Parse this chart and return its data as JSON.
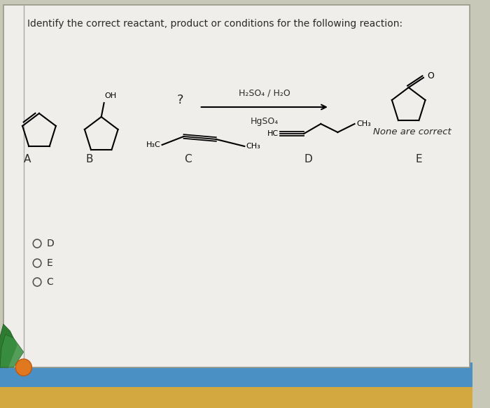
{
  "title": "Identify the correct reactant, product or conditions for the following reaction:",
  "condition_top": "H₂SO₄ / H₂O",
  "condition_bottom": "HgSO₄",
  "question_mark": "?",
  "radio_choices": [
    "D",
    "E",
    "C"
  ],
  "none_correct": "None are correct",
  "bg_color_outer": "#c8c8b8",
  "bg_color_card": "#f0eeeb",
  "text_color": "#2a2a2a",
  "border_color": "#b0b0a0",
  "label_A": "A",
  "label_B": "B",
  "label_C": "C",
  "label_D": "D",
  "label_E": "E"
}
